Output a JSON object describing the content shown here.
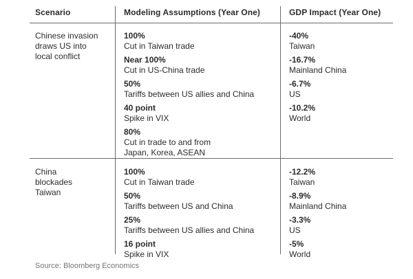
{
  "header": {
    "col_scenario": "Scenario",
    "col_assumptions": "Modeling Assumptions (Year One)",
    "col_impact": "GDP Impact (Year One)"
  },
  "sections": [
    {
      "scenario": "Chinese invasion\ndraws US into\nlocal conflict",
      "assumptions": [
        {
          "value": "100%",
          "label": "Cut in Taiwan trade"
        },
        {
          "value": "Near 100%",
          "label": "Cut in US-China trade"
        },
        {
          "value": "50%",
          "label": "Tariffs between US allies and China"
        },
        {
          "value": "40 point",
          "label": "Spike in VIX"
        },
        {
          "value": "80%",
          "label": "Cut in trade to and from\nJapan, Korea, ASEAN"
        }
      ],
      "impacts": [
        {
          "value": "-40%",
          "label": "Taiwan"
        },
        {
          "value": "-16.7%",
          "label": "Mainland China"
        },
        {
          "value": "-6.7%",
          "label": "US"
        },
        {
          "value": "-10.2%",
          "label": "World"
        }
      ]
    },
    {
      "scenario": "China\nblockades\nTaiwan",
      "assumptions": [
        {
          "value": "100%",
          "label": "Cut in Taiwan trade"
        },
        {
          "value": "50%",
          "label": "Tariffs between US and China"
        },
        {
          "value": "25%",
          "label": "Tariffs between US allies and China"
        },
        {
          "value": "16 point",
          "label": "Spike in VIX"
        }
      ],
      "impacts": [
        {
          "value": "-12.2%",
          "label": "Taiwan"
        },
        {
          "value": "-8.9%",
          "label": "Mainland China"
        },
        {
          "value": "-3.3%",
          "label": "US"
        },
        {
          "value": "-5%",
          "label": "World"
        }
      ]
    }
  ],
  "source": "Source: Bloomberg Economics",
  "colors": {
    "text": "#2b2b2b",
    "rule": "#6a6a6a",
    "source_text": "#757575",
    "background": "#ffffff"
  },
  "chart_data": {
    "type": "table",
    "title": "",
    "columns": [
      "Scenario",
      "Modeling Assumptions (Year One)",
      "GDP Impact (Year One)"
    ],
    "rows": [
      [
        "Chinese invasion draws US into local conflict",
        "100% — Cut in Taiwan trade",
        "-40% — Taiwan"
      ],
      [
        "Chinese invasion draws US into local conflict",
        "Near 100% — Cut in US-China trade",
        "-16.7% — Mainland China"
      ],
      [
        "Chinese invasion draws US into local conflict",
        "50% — Tariffs between US allies and China",
        "-6.7% — US"
      ],
      [
        "Chinese invasion draws US into local conflict",
        "40 point — Spike in VIX",
        "-10.2% — World"
      ],
      [
        "Chinese invasion draws US into local conflict",
        "80% — Cut in trade to and from Japan, Korea, ASEAN",
        ""
      ],
      [
        "China blockades Taiwan",
        "100% — Cut in Taiwan trade",
        "-12.2% — Taiwan"
      ],
      [
        "China blockades Taiwan",
        "50% — Tariffs between US and China",
        "-8.9% — Mainland China"
      ],
      [
        "China blockades Taiwan",
        "25% — Tariffs between US allies and China",
        "-3.3% — US"
      ],
      [
        "China blockades Taiwan",
        "16 point — Spike in VIX",
        "-5% — World"
      ]
    ],
    "annotations": [
      "Source: Bloomberg Economics"
    ],
    "layout": {
      "grid": "off",
      "column_dividers": true,
      "header_rule": true,
      "section_rule": true
    }
  }
}
